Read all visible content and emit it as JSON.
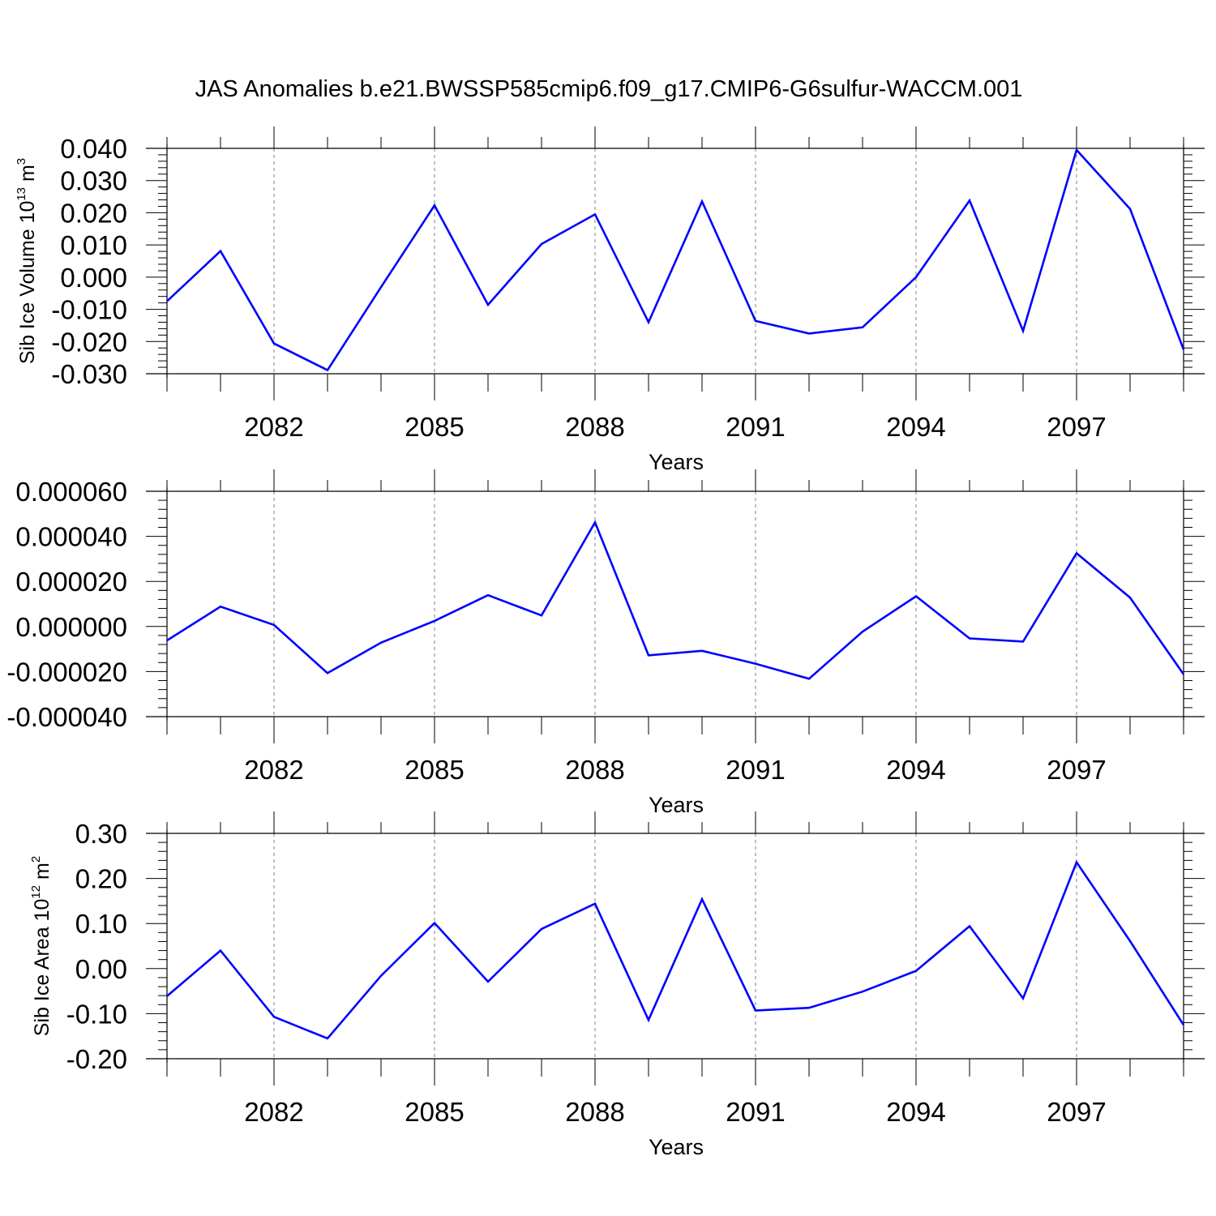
{
  "title": "JAS Anomalies b.e21.BWSSP585cmip6.f09_g17.CMIP6-G6sulfur-WACCM.001",
  "colors": {
    "line": "#0000ff",
    "axis": "#000000",
    "grid": "#808080"
  },
  "chart_data": [
    {
      "type": "line",
      "ylabel": {
        "prefix": "Sib Ice Volume 10",
        "exp": "13",
        "unit": " m",
        "unit_exp": "3"
      },
      "xlabel": "Years",
      "xlim": [
        2080,
        2099
      ],
      "ylim": [
        -0.03,
        0.04
      ],
      "yticks": [
        -0.03,
        -0.02,
        -0.01,
        0.0,
        0.01,
        0.02,
        0.03,
        0.04
      ],
      "ytick_labels": [
        "-0.030",
        "-0.020",
        "-0.010",
        "0.000",
        "0.010",
        "0.020",
        "0.030",
        "0.040"
      ],
      "xticks": [
        2082,
        2085,
        2088,
        2091,
        2094,
        2097
      ],
      "xtick_labels": [
        "2082",
        "2085",
        "2088",
        "2091",
        "2094",
        "2097"
      ],
      "grid": "vertical dashed at major x ticks",
      "series": [
        {
          "x": [
            2080,
            2081,
            2082,
            2083,
            2084,
            2085,
            2086,
            2087,
            2088,
            2089,
            2090,
            2091,
            2092,
            2093,
            2094,
            2095,
            2096,
            2097,
            2098,
            2099
          ],
          "values": [
            -0.0075,
            0.0081,
            -0.0206,
            -0.0289,
            -0.0031,
            0.0223,
            -0.0086,
            0.0103,
            0.0195,
            -0.014,
            0.0235,
            -0.0136,
            -0.0175,
            -0.0156,
            0.0,
            0.0238,
            -0.0167,
            0.0395,
            0.0212,
            -0.0225
          ]
        }
      ]
    },
    {
      "type": "line",
      "ylabel": null,
      "xlabel": "Years",
      "xlim": [
        2080,
        2099
      ],
      "ylim": [
        -4e-05,
        6e-05
      ],
      "yticks": [
        -4e-05,
        -2e-05,
        0.0,
        2e-05,
        4e-05,
        6e-05
      ],
      "ytick_labels": [
        "-0.000040",
        "-0.000020",
        "0.000000",
        "0.000020",
        "0.000040",
        "0.000060"
      ],
      "xticks": [
        2082,
        2085,
        2088,
        2091,
        2094,
        2097
      ],
      "xtick_labels": [
        "2082",
        "2085",
        "2088",
        "2091",
        "2094",
        "2097"
      ],
      "grid": "vertical dashed at major x ticks",
      "series": [
        {
          "x": [
            2080,
            2081,
            2082,
            2083,
            2084,
            2085,
            2086,
            2087,
            2088,
            2089,
            2090,
            2091,
            2092,
            2093,
            2094,
            2095,
            2096,
            2097,
            2098,
            2099
          ],
          "values": [
            -6.2e-06,
            8.8e-06,
            7e-07,
            -2.07e-05,
            -7.2e-06,
            2.5e-06,
            1.39e-05,
            4.9e-06,
            4.62e-05,
            -1.28e-05,
            -1.08e-05,
            -1.65e-05,
            -2.32e-05,
            -2.3e-06,
            1.34e-05,
            -5.3e-06,
            -6.7e-06,
            3.25e-05,
            1.28e-05,
            -2.12e-05
          ]
        }
      ]
    },
    {
      "type": "line",
      "ylabel": {
        "prefix": "Sib Ice Area 10",
        "exp": "12",
        "unit": " m",
        "unit_exp": "2"
      },
      "xlabel": "Years",
      "xlim": [
        2080,
        2099
      ],
      "ylim": [
        -0.2,
        0.3
      ],
      "yticks": [
        -0.2,
        -0.1,
        0.0,
        0.1,
        0.2,
        0.3
      ],
      "ytick_labels": [
        "-0.20",
        "-0.10",
        "0.00",
        "0.10",
        "0.20",
        "0.30"
      ],
      "xticks": [
        2082,
        2085,
        2088,
        2091,
        2094,
        2097
      ],
      "xtick_labels": [
        "2082",
        "2085",
        "2088",
        "2091",
        "2094",
        "2097"
      ],
      "grid": "vertical dashed at major x ticks",
      "series": [
        {
          "x": [
            2080,
            2081,
            2082,
            2083,
            2084,
            2085,
            2086,
            2087,
            2088,
            2089,
            2090,
            2091,
            2092,
            2093,
            2094,
            2095,
            2096,
            2097,
            2098,
            2099
          ],
          "values": [
            -0.061,
            0.04,
            -0.107,
            -0.155,
            -0.016,
            0.101,
            -0.029,
            0.088,
            0.144,
            -0.114,
            0.154,
            -0.093,
            -0.087,
            -0.051,
            -0.005,
            0.094,
            -0.066,
            0.236,
            0.061,
            -0.125
          ]
        }
      ]
    }
  ]
}
